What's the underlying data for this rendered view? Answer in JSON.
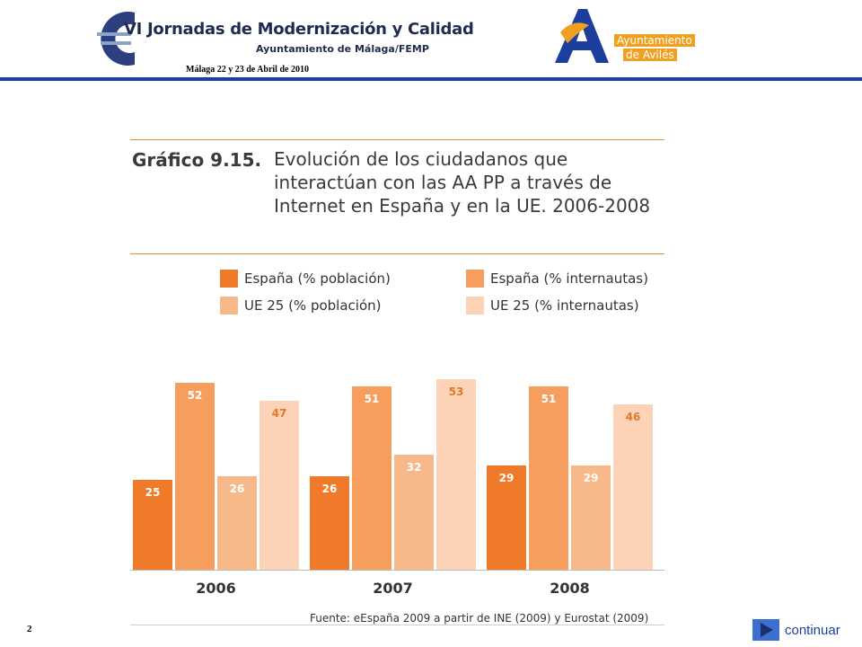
{
  "header": {
    "title": "VI Jornadas de Modernización y Calidad",
    "subtitle": "Ayuntamiento de Málaga/FEMP",
    "date": "Málaga 22 y 23 de Abril de 2010",
    "org_line1": "Ayuntamiento",
    "org_line2": "de Avilés",
    "accent_color": "#1c3f9e"
  },
  "footer": {
    "page_number": "2",
    "continue_label": "continuar",
    "continue_icon": "play-arrow-icon"
  },
  "chart_data": {
    "type": "bar",
    "title_prefix": "Gráfico 9.15.",
    "title": "Evolución de los ciudadanos que interactúan con las AA PP a través de Internet en España y en la UE. 2006-2008",
    "source": "Fuente: eEspaña 2009 a partir de INE (2009) y Eurostat (2009)",
    "categories": [
      "2006",
      "2007",
      "2008"
    ],
    "series": [
      {
        "name": "España (% población)",
        "values": [
          25,
          26,
          29
        ],
        "color": "#ef7a2a",
        "label_color": "#ffffff"
      },
      {
        "name": "España (% internautas)",
        "values": [
          52,
          51,
          51
        ],
        "color": "#f59e5e",
        "label_color": "#ffffff"
      },
      {
        "name": "UE 25 (% población)",
        "values": [
          26,
          32,
          29
        ],
        "color": "#f8b98a",
        "label_color": "#ffffff"
      },
      {
        "name": "UE 25 (% internautas)",
        "values": [
          47,
          53,
          46
        ],
        "color": "#fcd3b6",
        "label_color": "#e07a2a"
      }
    ],
    "ylim": [
      0,
      55
    ],
    "grid": false,
    "legend_position": "top"
  }
}
